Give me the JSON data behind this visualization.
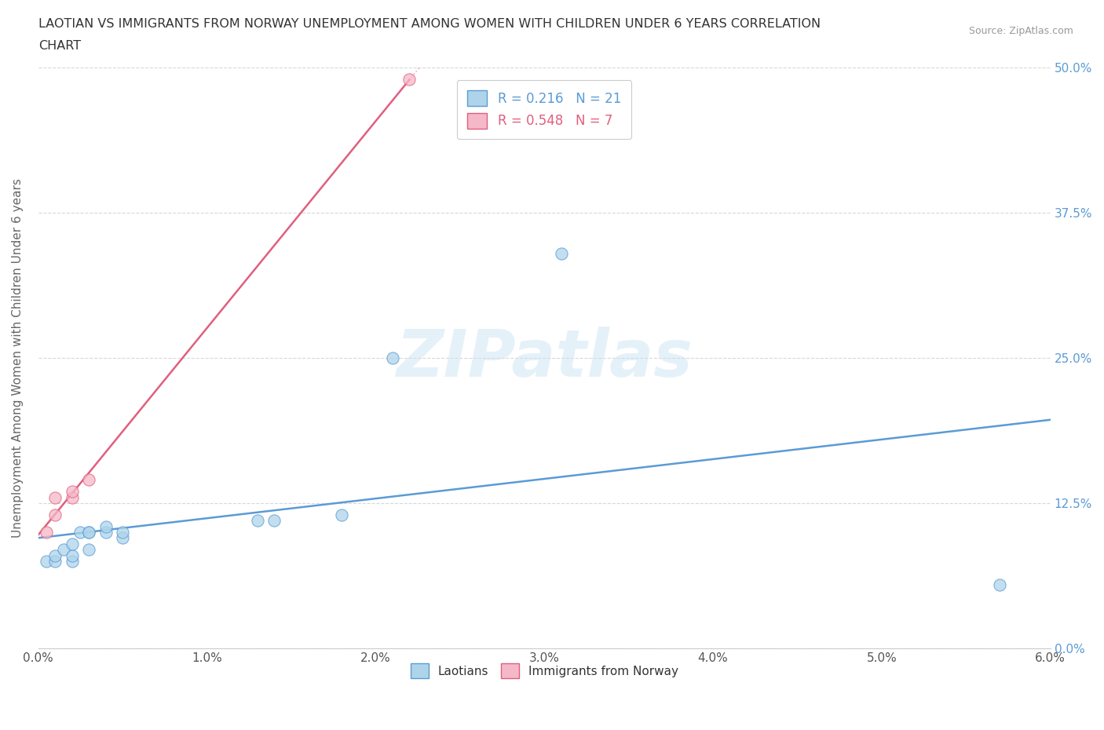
{
  "title_line1": "LAOTIAN VS IMMIGRANTS FROM NORWAY UNEMPLOYMENT AMONG WOMEN WITH CHILDREN UNDER 6 YEARS CORRELATION",
  "title_line2": "CHART",
  "source": "Source: ZipAtlas.com",
  "xlim": [
    0.0,
    0.06
  ],
  "ylim": [
    0.0,
    0.5
  ],
  "ylabel": "Unemployment Among Women with Children Under 6 years",
  "laotian_x": [
    0.0005,
    0.001,
    0.001,
    0.0015,
    0.002,
    0.002,
    0.002,
    0.0025,
    0.003,
    0.003,
    0.003,
    0.004,
    0.004,
    0.005,
    0.005,
    0.013,
    0.014,
    0.018,
    0.021,
    0.031,
    0.057
  ],
  "laotian_y": [
    0.075,
    0.075,
    0.08,
    0.085,
    0.075,
    0.08,
    0.09,
    0.1,
    0.085,
    0.1,
    0.1,
    0.1,
    0.105,
    0.095,
    0.1,
    0.11,
    0.11,
    0.115,
    0.25,
    0.34,
    0.055
  ],
  "norway_x": [
    0.0005,
    0.001,
    0.001,
    0.002,
    0.002,
    0.003,
    0.022
  ],
  "norway_y": [
    0.1,
    0.115,
    0.13,
    0.13,
    0.135,
    0.145,
    0.49
  ],
  "laotian_color": "#aed4ea",
  "norway_color": "#f5b8c8",
  "trendline_laotian_color": "#5b9bd5",
  "trendline_norway_color": "#e05f7f",
  "R_laotian": "0.216",
  "N_laotian": "21",
  "R_norway": "0.548",
  "N_norway": "7",
  "watermark_text": "ZIPatlas",
  "watermark_color": "#cce4f4",
  "background_color": "#ffffff",
  "grid_color": "#d8d8d8",
  "ylabel_color": "#5b9bd5",
  "xlabel_color": "#555555"
}
